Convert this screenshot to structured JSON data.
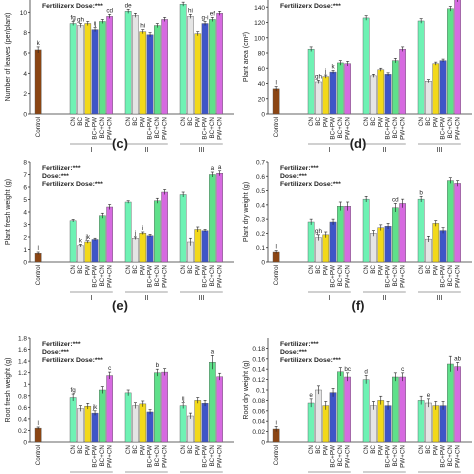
{
  "colors": {
    "control": "#8B4513",
    "CN": "#6EF2B4",
    "BC": "#E5E5E5",
    "PW": "#F2D91A",
    "BC+PW": "#3E55C8",
    "BC+CN": "#5FE08A",
    "PW+CN": "#D66AE0"
  },
  "panel_letters": [
    "(c)",
    "(d)",
    "(e)",
    "(f)"
  ],
  "chart_data": [
    {
      "id": "a",
      "type": "bar",
      "ylabel": "Number of leaves (per/plant)",
      "ylim": [
        0,
        12
      ],
      "yticks": [
        0,
        2,
        4,
        6,
        8,
        10
      ],
      "annotations": [
        "Fertilizerx Dose:***"
      ],
      "categories": [
        "CN",
        "BC",
        "PW",
        "BC+PW",
        "BC+CN",
        "PW+CN"
      ],
      "control": {
        "label": "Control",
        "value": 6.3,
        "err": 0.3,
        "letter": "k"
      },
      "groups": [
        {
          "label": "I",
          "values": [
            8.9,
            8.7,
            8.9,
            8.3,
            9.1,
            9.6
          ],
          "errs": [
            0.2,
            0.2,
            0.2,
            0.2,
            0.2,
            0.2
          ],
          "letters": [
            "fg",
            "gh",
            "",
            "ij",
            "",
            "cd"
          ]
        },
        {
          "label": "II",
          "values": [
            10.1,
            9.7,
            8.1,
            7.8,
            8.7,
            9.3
          ],
          "errs": [
            0.2,
            0.2,
            0.2,
            0.2,
            0.2,
            0.2
          ],
          "letters": [
            "de",
            "",
            "hi",
            "",
            "",
            ""
          ]
        },
        {
          "label": "III",
          "values": [
            10.8,
            9.6,
            7.9,
            8.9,
            9.3,
            9.9
          ],
          "errs": [
            0.2,
            0.2,
            0.2,
            0.2,
            0.2,
            0.2
          ],
          "letters": [
            "",
            "hi",
            "",
            "g-i",
            "ef",
            ""
          ]
        }
      ]
    },
    {
      "id": "b",
      "type": "bar",
      "ylabel": "Plant area (cm²)",
      "ylim": [
        0,
        160
      ],
      "yticks": [
        0,
        20,
        40,
        60,
        80,
        100,
        120,
        140,
        160
      ],
      "annotations": [
        "Fertilizerx Dose:***"
      ],
      "categories": [
        "CN",
        "BC",
        "PW",
        "BC+PW",
        "BC+CN",
        "PW+CN"
      ],
      "control": {
        "label": "Control",
        "value": 33,
        "err": 3,
        "letter": "l"
      },
      "groups": [
        {
          "label": "I",
          "values": [
            85,
            42,
            49,
            55,
            67,
            66
          ],
          "errs": [
            3,
            2,
            2,
            2,
            3,
            3
          ],
          "letters": [
            "",
            "gh",
            "j",
            "k",
            "",
            ""
          ]
        },
        {
          "label": "II",
          "values": [
            126,
            50,
            58,
            52,
            70,
            85
          ],
          "errs": [
            3,
            2,
            2,
            2,
            3,
            3
          ],
          "letters": [
            "",
            "",
            "",
            "",
            "",
            ""
          ]
        },
        {
          "label": "III",
          "values": [
            122,
            43,
            66,
            70,
            138,
            150
          ],
          "errs": [
            3,
            2,
            2,
            2,
            3,
            3
          ],
          "letters": [
            "",
            "",
            "",
            "",
            "",
            ""
          ]
        }
      ]
    },
    {
      "id": "c",
      "type": "bar",
      "ylabel": "Plant fresh weight (g)",
      "ylim": [
        0,
        8
      ],
      "yticks": [
        0,
        1,
        2,
        3,
        4,
        5,
        6,
        7,
        8
      ],
      "annotations": [
        "Fertilizer:***",
        "Dose:***",
        "Fertilizerx Dose:***"
      ],
      "categories": [
        "CN",
        "BC",
        "PW",
        "BC+PW",
        "BC+CN",
        "PW+CN"
      ],
      "control": {
        "label": "Control",
        "value": 0.7,
        "err": 0.1,
        "letter": "l"
      },
      "groups": [
        {
          "label": "I",
          "values": [
            3.3,
            1.3,
            1.6,
            1.8,
            3.7,
            4.4
          ],
          "errs": [
            0.1,
            0.1,
            0.1,
            0.1,
            0.2,
            0.2
          ],
          "letters": [
            "",
            "k",
            "jk",
            "",
            "",
            ""
          ]
        },
        {
          "label": "II",
          "values": [
            4.8,
            1.9,
            2.3,
            2.1,
            4.9,
            5.6
          ],
          "errs": [
            0.1,
            0.1,
            0.1,
            0.1,
            0.2,
            0.2
          ],
          "letters": [
            "",
            "j",
            "i",
            "",
            "",
            ""
          ]
        },
        {
          "label": "III",
          "values": [
            5.4,
            1.6,
            2.6,
            2.5,
            7.0,
            7.1
          ],
          "errs": [
            0.2,
            0.3,
            0.2,
            0.1,
            0.2,
            0.2
          ],
          "letters": [
            "",
            "",
            "",
            "",
            "a",
            "a"
          ]
        }
      ]
    },
    {
      "id": "d",
      "type": "bar",
      "ylabel": "Plant dry weight (g)",
      "ylim": [
        0,
        0.7
      ],
      "yticks": [
        0,
        0.1,
        0.2,
        0.3,
        0.4,
        0.5,
        0.6,
        0.7
      ],
      "annotations": [
        "Fertilizer:***",
        "Dose:***",
        "Fertilizerx Dose:***"
      ],
      "categories": [
        "CN",
        "BC",
        "PW",
        "BC+PW",
        "BC+CN",
        "PW+CN"
      ],
      "control": {
        "label": "Control",
        "value": 0.07,
        "err": 0.01,
        "letter": "l"
      },
      "groups": [
        {
          "label": "I",
          "values": [
            0.28,
            0.17,
            0.19,
            0.28,
            0.39,
            0.39
          ],
          "errs": [
            0.02,
            0.02,
            0.02,
            0.02,
            0.03,
            0.03
          ],
          "letters": [
            "",
            "gh",
            "",
            "",
            "",
            ""
          ]
        },
        {
          "label": "II",
          "values": [
            0.44,
            0.2,
            0.24,
            0.25,
            0.38,
            0.41
          ],
          "errs": [
            0.02,
            0.02,
            0.02,
            0.02,
            0.03,
            0.03
          ],
          "letters": [
            "",
            "",
            "",
            "",
            "cd",
            ""
          ]
        },
        {
          "label": "III",
          "values": [
            0.44,
            0.16,
            0.27,
            0.22,
            0.57,
            0.55
          ],
          "errs": [
            0.02,
            0.02,
            0.02,
            0.02,
            0.02,
            0.02
          ],
          "letters": [
            "b",
            "",
            "",
            "",
            "",
            ""
          ]
        }
      ]
    },
    {
      "id": "e",
      "type": "bar",
      "ylabel": "Root fresh weight (g)",
      "ylim": [
        0,
        1.8
      ],
      "yticks": [
        0,
        0.2,
        0.4,
        0.6,
        0.8,
        1.0,
        1.2,
        1.4,
        1.6,
        1.8
      ],
      "annotations": [
        "Fertilizer:***",
        "Dose:***",
        "Fertilizerx Dose:***"
      ],
      "categories": [
        "CN",
        "BC",
        "PW",
        "BC+PW",
        "BC+CN",
        "PW+CN"
      ],
      "control": {
        "label": "Control",
        "value": 0.24,
        "err": 0.02,
        "letter": "l"
      },
      "groups": [
        {
          "label": "I",
          "values": [
            0.77,
            0.58,
            0.62,
            0.5,
            0.9,
            1.15
          ],
          "errs": [
            0.06,
            0.05,
            0.05,
            0.04,
            0.06,
            0.06
          ],
          "letters": [
            "fg",
            "",
            "",
            "jk",
            "",
            "c"
          ]
        },
        {
          "label": "II",
          "values": [
            0.85,
            0.63,
            0.66,
            0.52,
            1.2,
            1.21
          ],
          "errs": [
            0.05,
            0.05,
            0.05,
            0.04,
            0.06,
            0.06
          ],
          "letters": [
            "",
            "",
            "",
            "",
            "b",
            ""
          ]
        },
        {
          "label": "III",
          "values": [
            0.63,
            0.45,
            0.72,
            0.67,
            1.38,
            1.13
          ],
          "errs": [
            0.05,
            0.05,
            0.05,
            0.05,
            0.12,
            0.06
          ],
          "letters": [
            "ij",
            "",
            "",
            "",
            "a",
            ""
          ]
        }
      ]
    },
    {
      "id": "f",
      "type": "bar",
      "ylabel": "Root dry weight (g)",
      "ylim": [
        0,
        0.2
      ],
      "yticks": [
        0,
        0.02,
        0.04,
        0.06,
        0.08,
        0.1,
        0.12,
        0.14,
        0.16,
        0.18
      ],
      "annotations": [
        "Fertilizer:***",
        "Dose:***",
        "Fertilizerx Dose:***"
      ],
      "categories": [
        "CN",
        "BC",
        "PW",
        "BC+PW",
        "BC+CN",
        "PW+CN"
      ],
      "control": {
        "label": "Control",
        "value": 0.025,
        "err": 0.005,
        "letter": "i"
      },
      "groups": [
        {
          "label": "I",
          "values": [
            0.075,
            0.1,
            0.07,
            0.095,
            0.135,
            0.125
          ],
          "errs": [
            0.008,
            0.008,
            0.008,
            0.008,
            0.008,
            0.008
          ],
          "letters": [
            "e",
            "",
            "",
            "",
            "",
            "bc"
          ]
        },
        {
          "label": "II",
          "values": [
            0.12,
            0.07,
            0.08,
            0.07,
            0.125,
            0.125
          ],
          "errs": [
            0.008,
            0.008,
            0.008,
            0.008,
            0.008,
            0.008
          ],
          "letters": [
            "d",
            "",
            "",
            "",
            "",
            "c"
          ]
        },
        {
          "label": "III",
          "values": [
            0.08,
            0.075,
            0.07,
            0.07,
            0.15,
            0.145
          ],
          "errs": [
            0.008,
            0.008,
            0.008,
            0.008,
            0.015,
            0.008
          ],
          "letters": [
            "",
            "e",
            "",
            "",
            "",
            "ab"
          ]
        }
      ]
    }
  ]
}
